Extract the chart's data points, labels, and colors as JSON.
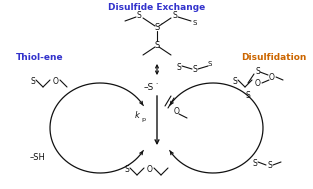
{
  "title_disulfide": "Disulfide Exchange",
  "title_thiolene": "Thiol-ene",
  "title_disulfidation": "Disulfidation",
  "color_blue": "#3333CC",
  "color_orange": "#CC6600",
  "color_black": "#111111",
  "bg_color": "#FFFFFF",
  "fig_width": 3.13,
  "fig_height": 1.89,
  "dpi": 100
}
